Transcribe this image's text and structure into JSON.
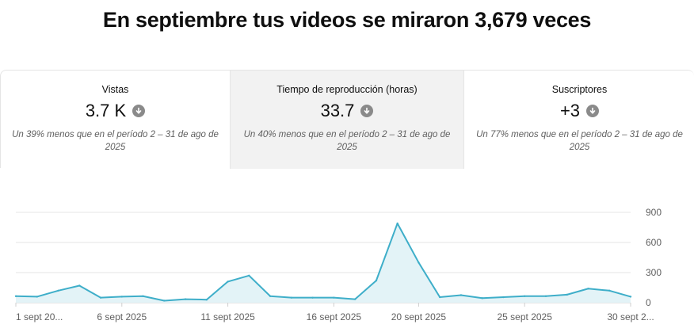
{
  "header": {
    "title": "En septiembre tus videos se miraron 3,679 veces"
  },
  "metrics": [
    {
      "label": "Vistas",
      "value": "3.7 K",
      "icon": "arrow-down-circle-icon",
      "note": "Un 39% menos que en el período 2 – 31 de ago de 2025",
      "selected": false
    },
    {
      "label": "Tiempo de reproducción (horas)",
      "value": "33.7",
      "icon": "arrow-down-circle-icon",
      "note": "Un 40% menos que en el período 2 – 31 de ago de 2025",
      "selected": true
    },
    {
      "label": "Suscriptores",
      "value": "+3",
      "icon": "arrow-down-circle-icon",
      "note": "Un 77% menos que en el período 2 – 31 de ago de 2025",
      "selected": false
    }
  ],
  "colors": {
    "line": "#3eaec9",
    "fill": "#e3f3f7",
    "grid": "#e5e5e5",
    "axis": "#606060"
  },
  "chart_data": {
    "type": "area",
    "x": [
      "1 sept",
      "2 sept",
      "3 sept",
      "4 sept",
      "5 sept",
      "6 sept",
      "7 sept",
      "8 sept",
      "9 sept",
      "10 sept",
      "11 sept",
      "12 sept",
      "13 sept",
      "14 sept",
      "15 sept",
      "16 sept",
      "17 sept",
      "18 sept",
      "19 sept",
      "20 sept",
      "21 sept",
      "22 sept",
      "23 sept",
      "24 sept",
      "25 sept",
      "26 sept",
      "27 sept",
      "28 sept",
      "29 sept",
      "30 sept"
    ],
    "values": [
      65,
      60,
      120,
      170,
      50,
      60,
      65,
      20,
      35,
      30,
      210,
      270,
      65,
      50,
      50,
      50,
      35,
      220,
      790,
      400,
      55,
      75,
      45,
      55,
      65,
      65,
      80,
      140,
      120,
      60
    ],
    "xtick_labels": [
      "1 sept 20...",
      "6 sept 2025",
      "11 sept 2025",
      "16 sept 2025",
      "20 sept 2025",
      "25 sept 2025",
      "30 sept 2..."
    ],
    "xtick_indices": [
      0,
      5,
      10,
      15,
      19,
      24,
      29
    ],
    "ytick_labels": [
      "0",
      "300",
      "600",
      "900"
    ],
    "yticks": [
      0,
      300,
      600,
      900
    ],
    "ylim": [
      0,
      900
    ],
    "grid": true
  }
}
